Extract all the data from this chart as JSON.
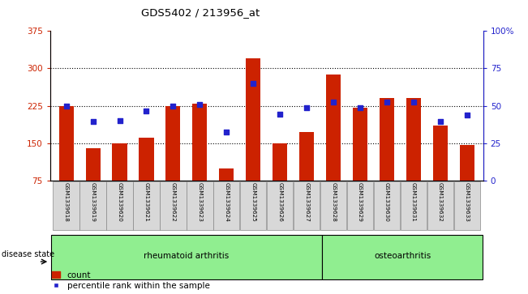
{
  "title": "GDS5402 / 213956_at",
  "samples": [
    "GSM1339618",
    "GSM1339619",
    "GSM1339620",
    "GSM1339621",
    "GSM1339622",
    "GSM1339623",
    "GSM1339624",
    "GSM1339625",
    "GSM1339626",
    "GSM1339627",
    "GSM1339628",
    "GSM1339629",
    "GSM1339630",
    "GSM1339631",
    "GSM1339632",
    "GSM1339633"
  ],
  "bar_values": [
    225,
    140,
    150,
    162,
    225,
    230,
    100,
    320,
    150,
    172,
    288,
    222,
    240,
    240,
    185,
    147
  ],
  "blue_values": [
    225,
    193,
    195,
    215,
    225,
    228,
    173,
    270,
    208,
    222,
    232,
    222,
    232,
    232,
    193,
    207
  ],
  "rheumatoid_count": 10,
  "osteoarthritis_count": 6,
  "ylim_left": [
    75,
    375
  ],
  "ylim_right": [
    0,
    100
  ],
  "yticks_left": [
    75,
    150,
    225,
    300,
    375
  ],
  "yticks_right": [
    0,
    25,
    50,
    75,
    100
  ],
  "bar_color": "#cc2200",
  "blue_color": "#2222cc",
  "tick_box_color": "#d8d8d8",
  "group_bg_color": "#90ee90",
  "legend_count_label": "count",
  "legend_percentile_label": "percentile rank within the sample",
  "disease_state_label": "disease state",
  "rheumatoid_label": "rheumatoid arthritis",
  "osteoarthritis_label": "osteoarthritis",
  "ybaseline": 75
}
